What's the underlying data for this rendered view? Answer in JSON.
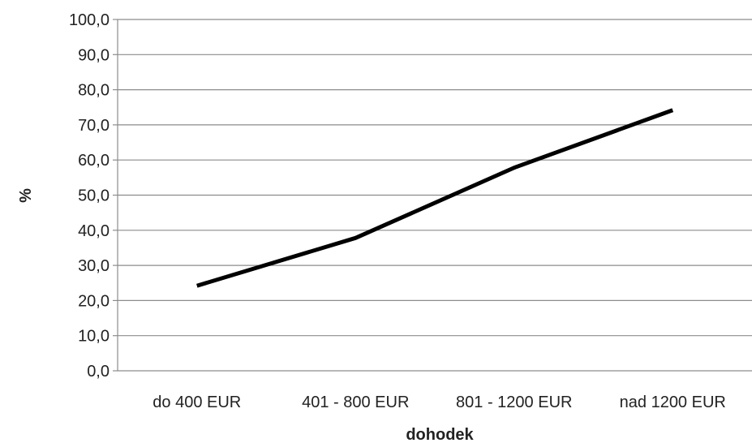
{
  "chart_data": {
    "type": "line",
    "xlabel": "dohodek",
    "ylabel": "%",
    "ylim": [
      0,
      100
    ],
    "yticks": [
      "0,0",
      "10,0",
      "20,0",
      "30,0",
      "40,0",
      "50,0",
      "60,0",
      "70,0",
      "80,0",
      "90,0",
      "100,0"
    ],
    "categories": [
      "do 400 EUR",
      "401 - 800 EUR",
      "801 - 1200 EUR",
      "nad 1200 EUR"
    ],
    "series": [
      {
        "values": [
          24.2,
          37.8,
          57.8,
          74.2
        ],
        "color": "#000000"
      }
    ],
    "grid": true,
    "legend": "none"
  }
}
